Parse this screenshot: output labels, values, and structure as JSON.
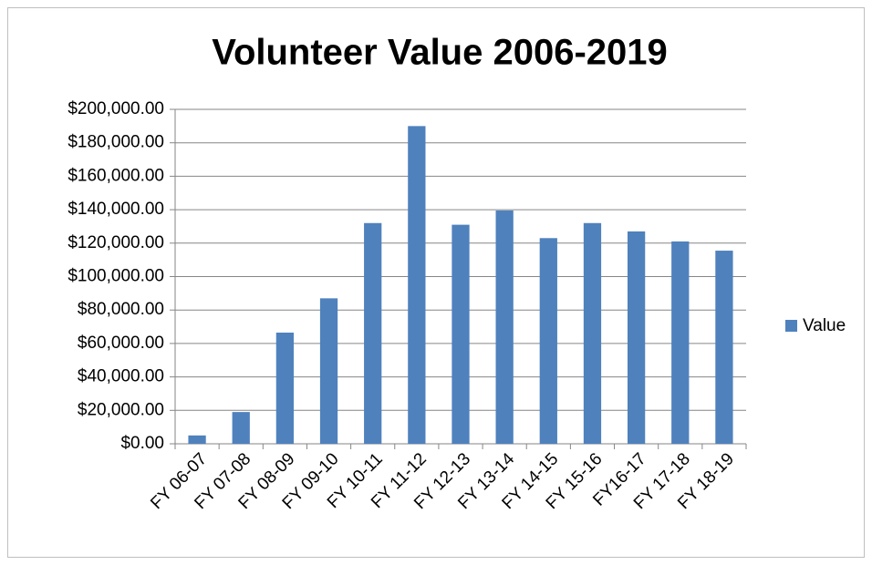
{
  "chart_data": {
    "type": "bar",
    "title": "Volunteer Value 2006-2019",
    "categories": [
      "FY 06-07",
      "FY 07-08",
      "FY 08-09",
      "FY 09-10",
      "FY 10-11",
      "FY 11-12",
      "FY 12-13",
      "FY 13-14",
      "FY 14-15",
      "FY 15-16",
      "FY16-17",
      "FY 17-18",
      "FY 18-19"
    ],
    "series": [
      {
        "name": "Value",
        "color": "#4f81bd",
        "values": [
          5000,
          19000,
          66500,
          87000,
          132000,
          190000,
          131000,
          139500,
          123000,
          132000,
          127000,
          121000,
          115500
        ]
      }
    ],
    "ylim": [
      0,
      200000
    ],
    "yticks": [
      {
        "value": 0,
        "label": "$0.00"
      },
      {
        "value": 20000,
        "label": "$20,000.00"
      },
      {
        "value": 40000,
        "label": "$40,000.00"
      },
      {
        "value": 60000,
        "label": "$60,000.00"
      },
      {
        "value": 80000,
        "label": "$80,000.00"
      },
      {
        "value": 100000,
        "label": "$100,000.00"
      },
      {
        "value": 120000,
        "label": "$120,000.00"
      },
      {
        "value": 140000,
        "label": "$140,000.00"
      },
      {
        "value": 160000,
        "label": "$160,000.00"
      },
      {
        "value": 180000,
        "label": "$180,000.00"
      },
      {
        "value": 200000,
        "label": "$200,000.00"
      }
    ],
    "grid": true,
    "legend": "right"
  }
}
